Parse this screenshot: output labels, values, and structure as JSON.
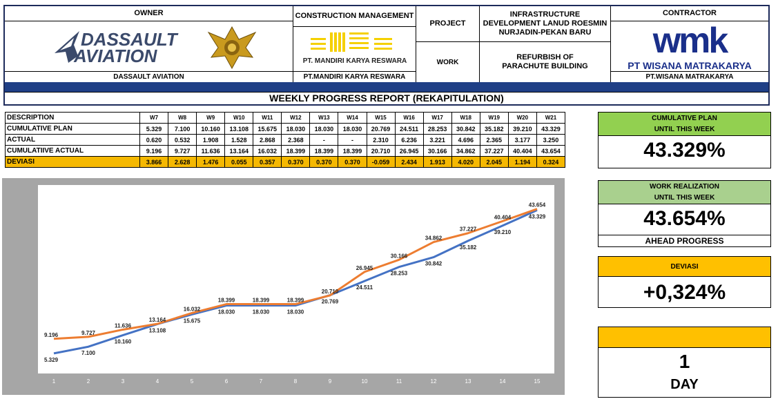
{
  "header": {
    "owner_label": "OWNER",
    "owner_logo_line1": "DASSAULT",
    "owner_logo_line2": "AVIATION",
    "owner_name": "DASSAULT AVIATION",
    "cm_label": "CONSTRUCTION MANAGEMENT",
    "cm_logo_text": "PT. MANDIRI KARYA RESWARA",
    "cm_name": "PT.MANDIRI KARYA RESWARA",
    "project_label": "PROJECT",
    "project_value": "INFRASTRUCTURE DEVELOPMENT LANUD ROESMIN NURJADIN-PEKAN BARU",
    "work_label": "WORK",
    "work_value": "REFURBISH OF PARACHUTE BUILDING",
    "contractor_label": "CONTRACTOR",
    "contractor_logo": "wmk",
    "contractor_logo_text": "PT WISANA MATRAKARYA",
    "contractor_name": "PT.WISANA MATRAKARYA",
    "report_title": "WEEKLY PROGRESS REPORT (REKAPITULATION)"
  },
  "table": {
    "desc_label": "DESCRIPTION",
    "weeks": [
      "W7",
      "W8",
      "W9",
      "W10",
      "W11",
      "W12",
      "W13",
      "W14",
      "W15",
      "W16",
      "W17",
      "W18",
      "W19",
      "W20",
      "W21"
    ],
    "rows": [
      {
        "label": "CUMULATIVE PLAN",
        "values": [
          "5.329",
          "7.100",
          "10.160",
          "13.108",
          "15.675",
          "18.030",
          "18.030",
          "18.030",
          "20.769",
          "24.511",
          "28.253",
          "30.842",
          "35.182",
          "39.210",
          "43.329"
        ]
      },
      {
        "label": "ACTUAL",
        "values": [
          "0.620",
          "0.532",
          "1.908",
          "1.528",
          "2.868",
          "2.368",
          "-",
          "-",
          "2.310",
          "6.236",
          "3.221",
          "4.696",
          "2.365",
          "3.177",
          "3.250"
        ]
      },
      {
        "label": "CUMULATIIVE ACTUAL",
        "values": [
          "9.196",
          "9.727",
          "11.636",
          "13.164",
          "16.032",
          "18.399",
          "18.399",
          "18.399",
          "20.710",
          "26.945",
          "30.166",
          "34.862",
          "37.227",
          "40.404",
          "43.654"
        ]
      },
      {
        "label": "DEVIASI",
        "values": [
          "3.866",
          "2.628",
          "1.476",
          "0.055",
          "0.357",
          "0.370",
          "0.370",
          "0.370",
          "-0.059",
          "2.434",
          "1.913",
          "4.020",
          "2.045",
          "1.194",
          "0.324"
        ]
      }
    ]
  },
  "summary": {
    "plan_title1": "CUMULATIVE PLAN",
    "plan_title2": "UNTIL THIS WEEK",
    "plan_value": "43.329%",
    "work_title1": "WORK REALIZATION",
    "work_title2": "UNTIL THIS WEEK",
    "work_value": "43.654%",
    "work_status": "AHEAD PROGRESS",
    "dev_title": "DEVIASI",
    "dev_value": "+0,324%",
    "day_value": "1",
    "day_unit": "DAY"
  },
  "colors": {
    "plan_line": "#4472c4",
    "actual_line": "#ed7d31",
    "green_head": "#92d050",
    "light_green_head": "#a9d08e",
    "orange_head": "#ffc000",
    "deviasi_row": "#f5b800",
    "title_bar": "#1f3f86",
    "chart_bg": "#a6a6a6"
  },
  "chart_data": {
    "type": "line",
    "x": [
      1,
      2,
      3,
      4,
      5,
      6,
      7,
      8,
      9,
      10,
      11,
      12,
      13,
      14,
      15
    ],
    "ylim": [
      0,
      50
    ],
    "series": [
      {
        "key": "plan",
        "values": [
          5.329,
          7.1,
          10.16,
          13.108,
          15.675,
          18.03,
          18.03,
          18.03,
          20.769,
          24.511,
          28.253,
          30.842,
          35.182,
          39.21,
          43.329
        ],
        "labels": [
          "5.329",
          "7.100",
          "10.160",
          "13.108",
          "15.675",
          "18.030",
          "18.030",
          "18.030",
          "20.769",
          "24.511",
          "28.253",
          "30.842",
          "35.182",
          "39.210",
          "43.329"
        ]
      },
      {
        "key": "actual",
        "values": [
          9.196,
          9.727,
          11.636,
          13.164,
          16.032,
          18.399,
          18.399,
          18.399,
          20.71,
          26.945,
          30.166,
          34.862,
          37.227,
          40.404,
          43.654
        ],
        "labels": [
          "9.196",
          "9.727",
          "11.636",
          "13.164",
          "16.032",
          "18.399",
          "18.399",
          "18.399",
          "20.710",
          "26.945",
          "30.166",
          "34.862",
          "37.227",
          "40.404",
          "43.654"
        ]
      }
    ]
  }
}
